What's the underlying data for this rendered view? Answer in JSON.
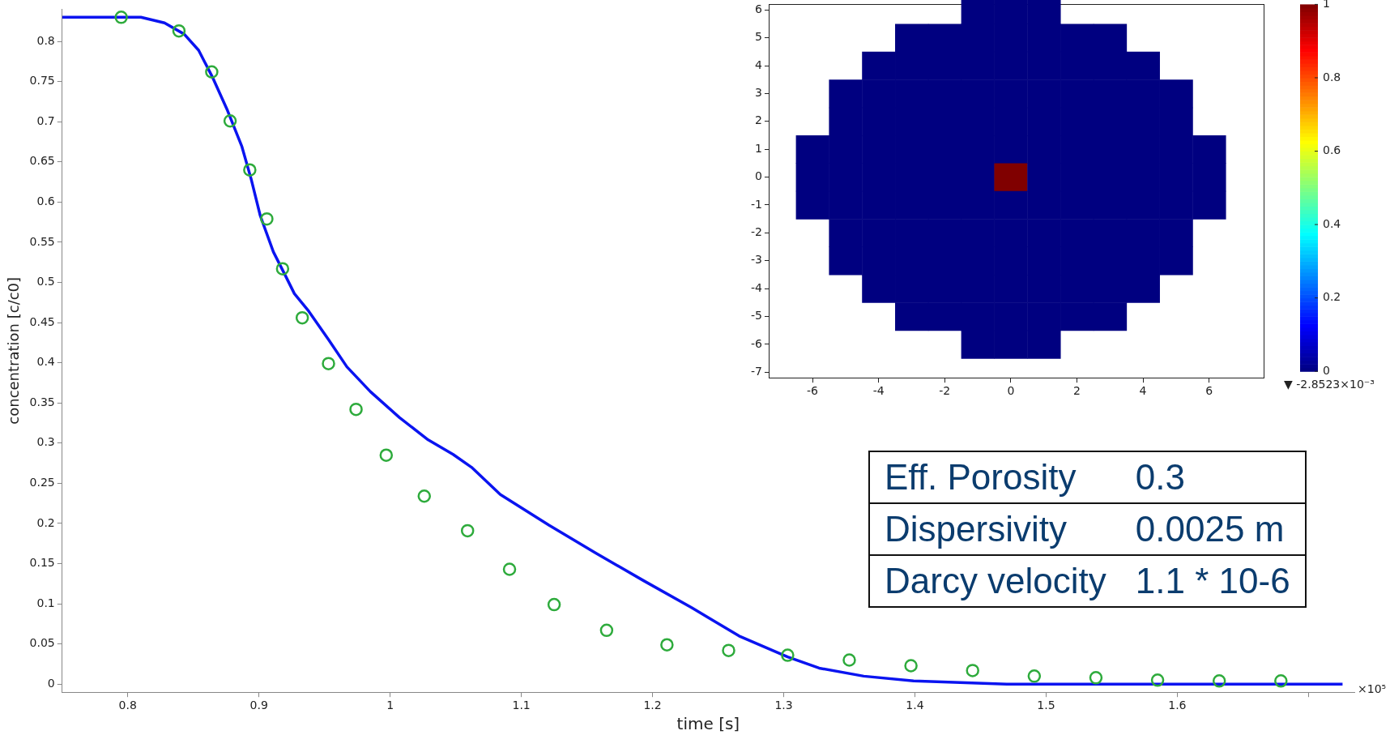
{
  "chart_data": [
    {
      "type": "line",
      "xlabel": "time [s]",
      "ylabel": "concentration [c/c0]",
      "xlim": [
        0.75,
        1.735
      ],
      "ylim": [
        -0.01,
        0.84
      ],
      "xticks": [
        0.8,
        0.9,
        {
          "value": 1,
          "label": "1"
        },
        1.1,
        1.2,
        1.3,
        1.4,
        1.5,
        1.6,
        {
          "value": 1.7,
          "label": null
        }
      ],
      "annotations": [
        "×10⁵"
      ],
      "yticks": [
        0,
        0.05,
        0.1,
        0.15,
        0.2,
        0.25,
        0.3,
        0.35,
        0.4,
        0.45,
        0.5,
        0.55,
        0.6,
        0.65,
        0.7,
        0.75,
        0.8
      ],
      "series": [
        {
          "type": "line",
          "color": "#0a14f0",
          "marker": "none",
          "x": [
            0.75,
            0.81,
            0.828,
            0.843,
            0.854,
            0.865,
            0.876,
            0.887,
            0.894,
            0.901,
            0.911,
            0.92,
            0.927,
            0.938,
            0.953,
            0.967,
            0.985,
            1.007,
            1.029,
            1.048,
            1.062,
            1.084,
            1.121,
            1.157,
            1.193,
            1.23,
            1.266,
            1.303,
            1.327,
            1.361,
            1.399,
            1.47,
            1.55,
            1.726
          ],
          "values": [
            0.83,
            0.83,
            0.823,
            0.809,
            0.789,
            0.754,
            0.714,
            0.669,
            0.629,
            0.583,
            0.538,
            0.509,
            0.486,
            0.464,
            0.429,
            0.395,
            0.364,
            0.332,
            0.304,
            0.286,
            0.27,
            0.236,
            0.198,
            0.163,
            0.129,
            0.095,
            0.06,
            0.034,
            0.02,
            0.01,
            0.004,
            0,
            0,
            0
          ]
        },
        {
          "type": "scatter",
          "color": "#2eab3c",
          "marker": "circle",
          "x": [
            0.795,
            0.839,
            0.864,
            0.878,
            0.893,
            0.906,
            0.918,
            0.933,
            0.953,
            0.974,
            0.997,
            1.026,
            1.059,
            1.091,
            1.125,
            1.165,
            1.211,
            1.258,
            1.303,
            1.35,
            1.397,
            1.444,
            1.491,
            1.538,
            1.585,
            1.632,
            1.679
          ],
          "values": [
            0.83,
            0.813,
            0.762,
            0.701,
            0.64,
            0.579,
            0.517,
            0.456,
            0.399,
            0.342,
            0.285,
            0.234,
            0.191,
            0.143,
            0.099,
            0.067,
            0.049,
            0.042,
            0.036,
            0.03,
            0.023,
            0.017,
            0.01,
            0.008,
            0.005,
            0.004,
            0.004
          ]
        }
      ]
    },
    {
      "type": "heatmap",
      "xlim": [
        -7.3,
        7.65
      ],
      "ylim": [
        -7.2,
        6.2
      ],
      "xticks": [
        -6,
        -4,
        -2,
        0,
        2,
        4,
        6
      ],
      "yticks": [
        -7,
        -6,
        -5,
        -4,
        -3,
        -2,
        -1,
        0,
        1,
        2,
        3,
        4,
        5,
        6
      ],
      "x": [
        -6,
        -5,
        -4,
        -3,
        -2,
        -1,
        0,
        1,
        2,
        3,
        4,
        5,
        6
      ],
      "y": [
        6,
        5,
        4,
        3,
        2,
        1,
        0,
        -1,
        -2,
        -3,
        -4,
        -5,
        -6
      ],
      "cells": [
        [
          null,
          null,
          null,
          null,
          null,
          0,
          0,
          0,
          null,
          null,
          null,
          null,
          null
        ],
        [
          null,
          null,
          null,
          0,
          0,
          0,
          0,
          0,
          0,
          0,
          null,
          null,
          null
        ],
        [
          null,
          null,
          0,
          0,
          0,
          0,
          0,
          0,
          0,
          0,
          0,
          null,
          null
        ],
        [
          null,
          0,
          0,
          0,
          0,
          0,
          0,
          0,
          0,
          0,
          0,
          0,
          null
        ],
        [
          null,
          0,
          0,
          0,
          0,
          0,
          0,
          0,
          0,
          0,
          0,
          0,
          null
        ],
        [
          0,
          0,
          0,
          0,
          0,
          0,
          0,
          0,
          0,
          0,
          0,
          0,
          0
        ],
        [
          0,
          0,
          0,
          0,
          0,
          0,
          1,
          0,
          0,
          0,
          0,
          0,
          0
        ],
        [
          0,
          0,
          0,
          0,
          0,
          0,
          0,
          0,
          0,
          0,
          0,
          0,
          0
        ],
        [
          null,
          0,
          0,
          0,
          0,
          0,
          0,
          0,
          0,
          0,
          0,
          0,
          null
        ],
        [
          null,
          0,
          0,
          0,
          0,
          0,
          0,
          0,
          0,
          0,
          0,
          0,
          null
        ],
        [
          null,
          null,
          0,
          0,
          0,
          0,
          0,
          0,
          0,
          0,
          0,
          null,
          null
        ],
        [
          null,
          null,
          null,
          0,
          0,
          0,
          0,
          0,
          0,
          0,
          null,
          null,
          null
        ],
        [
          null,
          null,
          null,
          null,
          null,
          0,
          0,
          0,
          null,
          null,
          null,
          null,
          null
        ]
      ],
      "clim": [
        0,
        1
      ],
      "cticks": [
        0,
        0.2,
        0.4,
        0.6,
        0.8,
        1
      ],
      "annotations": [
        "▼ -2.8523×10⁻³"
      ]
    },
    {
      "type": "other",
      "annotations": [
        "Eff. Porosity",
        "0.3",
        "Dispersivity",
        "0.0025 m",
        "Darcy velocity",
        "1.1 * 10-6"
      ]
    }
  ]
}
